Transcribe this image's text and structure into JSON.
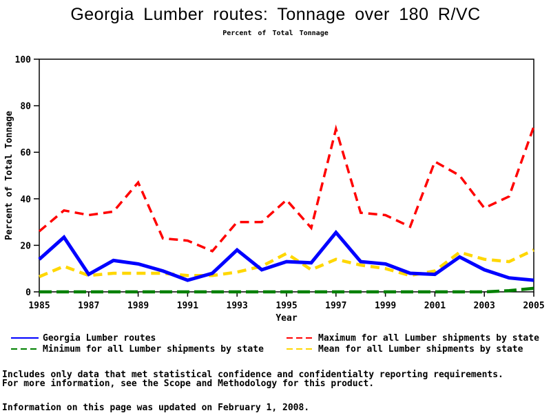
{
  "chart_data": {
    "type": "line",
    "title": "Georgia Lumber routes: Tonnage over 180 R/VC",
    "subtitle": "Percent of Total Tonnage",
    "xlabel": "Year",
    "ylabel": "Percent of Total Tonnage",
    "ylim": [
      0,
      100
    ],
    "yticks": [
      0,
      20,
      40,
      60,
      80,
      100
    ],
    "xticks": [
      1985,
      1987,
      1989,
      1991,
      1993,
      1995,
      1997,
      1999,
      2001,
      2003,
      2005
    ],
    "grid": false,
    "legend_position": "bottom",
    "frame": true,
    "axis_color": "#000000",
    "x": [
      1985,
      1986,
      1987,
      1988,
      1989,
      1990,
      1991,
      1992,
      1993,
      1994,
      1995,
      1996,
      1997,
      1998,
      1999,
      2000,
      2001,
      2002,
      2003,
      2004,
      2005
    ],
    "series": [
      {
        "name": "Georgia Lumber routes",
        "color": "#0000ff",
        "line_style": "solid",
        "dash": "",
        "line_width": 5,
        "values": [
          14,
          23.5,
          7.5,
          13.5,
          12,
          9,
          5,
          8,
          18,
          9.5,
          13,
          12.5,
          25.5,
          13,
          12,
          8,
          7.5,
          15,
          9.5,
          6,
          5
        ]
      },
      {
        "name": "Maximum for all Lumber shipments by state",
        "color": "#ff0000",
        "line_style": "dashed",
        "dash": "13 8",
        "line_width": 3.5,
        "values": [
          26,
          35,
          33,
          34.5,
          47,
          23,
          22,
          17.5,
          30,
          30,
          39.5,
          27.5,
          70,
          34,
          33,
          28,
          56,
          50,
          36,
          41,
          71
        ]
      },
      {
        "name": "Minimum for all Lumber shipments by state",
        "color": "#008000",
        "line_style": "dashed",
        "dash": "18 7",
        "line_width": 4.5,
        "values": [
          0,
          0,
          0,
          0,
          0,
          0,
          0,
          0,
          0,
          0,
          0,
          0,
          0,
          0,
          0,
          0,
          0,
          0,
          0,
          0.5,
          1.5
        ]
      },
      {
        "name": "Mean for all Lumber shipments by state",
        "color": "#ffd700",
        "line_style": "dashed",
        "dash": "13 8",
        "line_width": 4.5,
        "values": [
          6.5,
          11,
          7,
          8,
          8,
          8,
          7,
          7,
          8.5,
          11,
          16.5,
          9.5,
          14,
          11.5,
          10,
          7,
          9,
          17,
          14,
          13,
          18
        ]
      }
    ]
  },
  "footer": {
    "note_line1": "Includes only data that met statistical confidence and confidentialty reporting requirements.",
    "note_line2": "For more information, see the Scope and Methodology for this product.",
    "updated_line": "Information on this page was updated on February 1, 2008."
  }
}
